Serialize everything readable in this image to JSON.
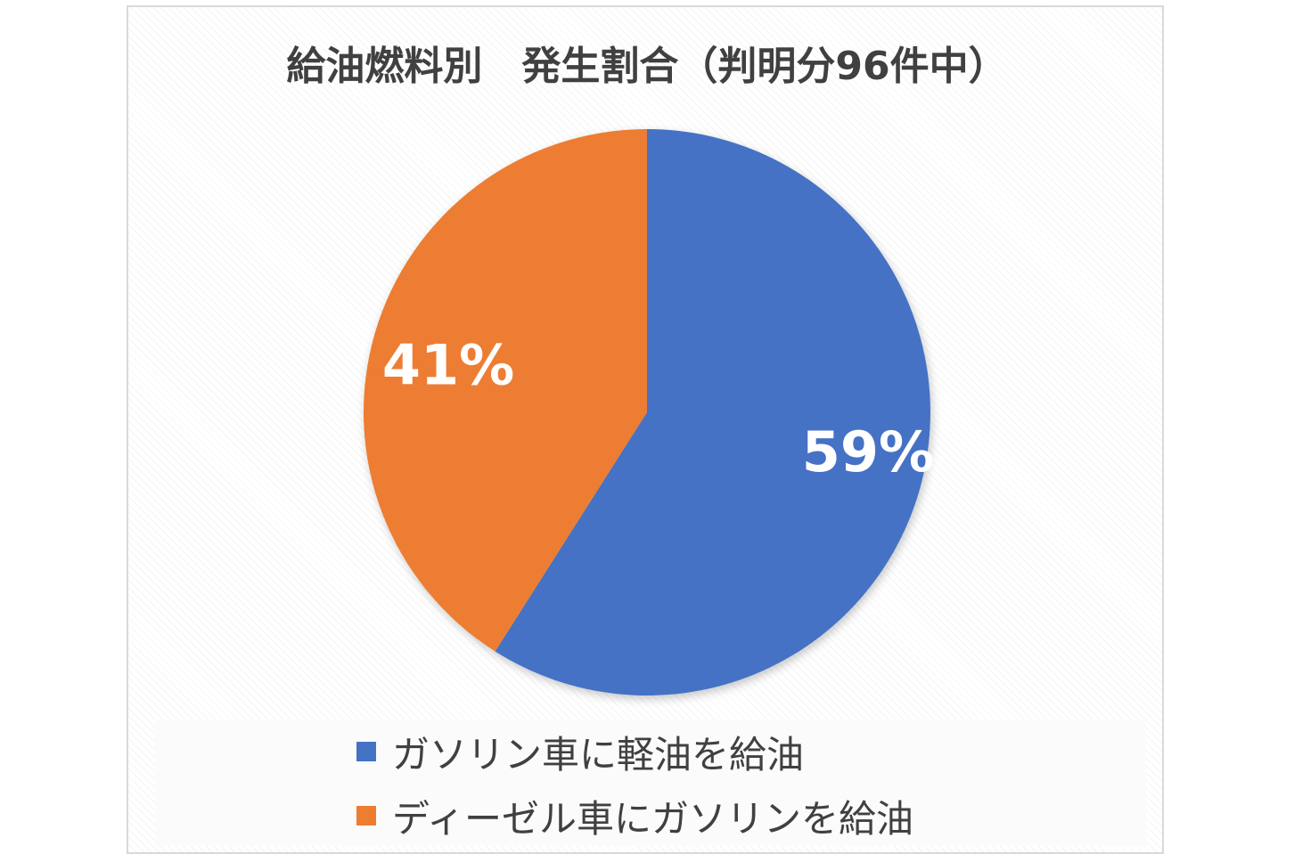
{
  "chart_data": {
    "type": "pie",
    "title": "給油燃料別　発生割合（判明分96件中）",
    "categories": [
      "ガソリン車に軽油を給油",
      "ディーゼル車にガソリンを給油"
    ],
    "values": [
      59,
      41
    ],
    "labels": [
      "59%",
      "41%"
    ],
    "colors": [
      "#4472c4",
      "#ed7d31"
    ],
    "legend_position": "bottom",
    "start_angle_deg": 0,
    "direction": "clockwise"
  }
}
